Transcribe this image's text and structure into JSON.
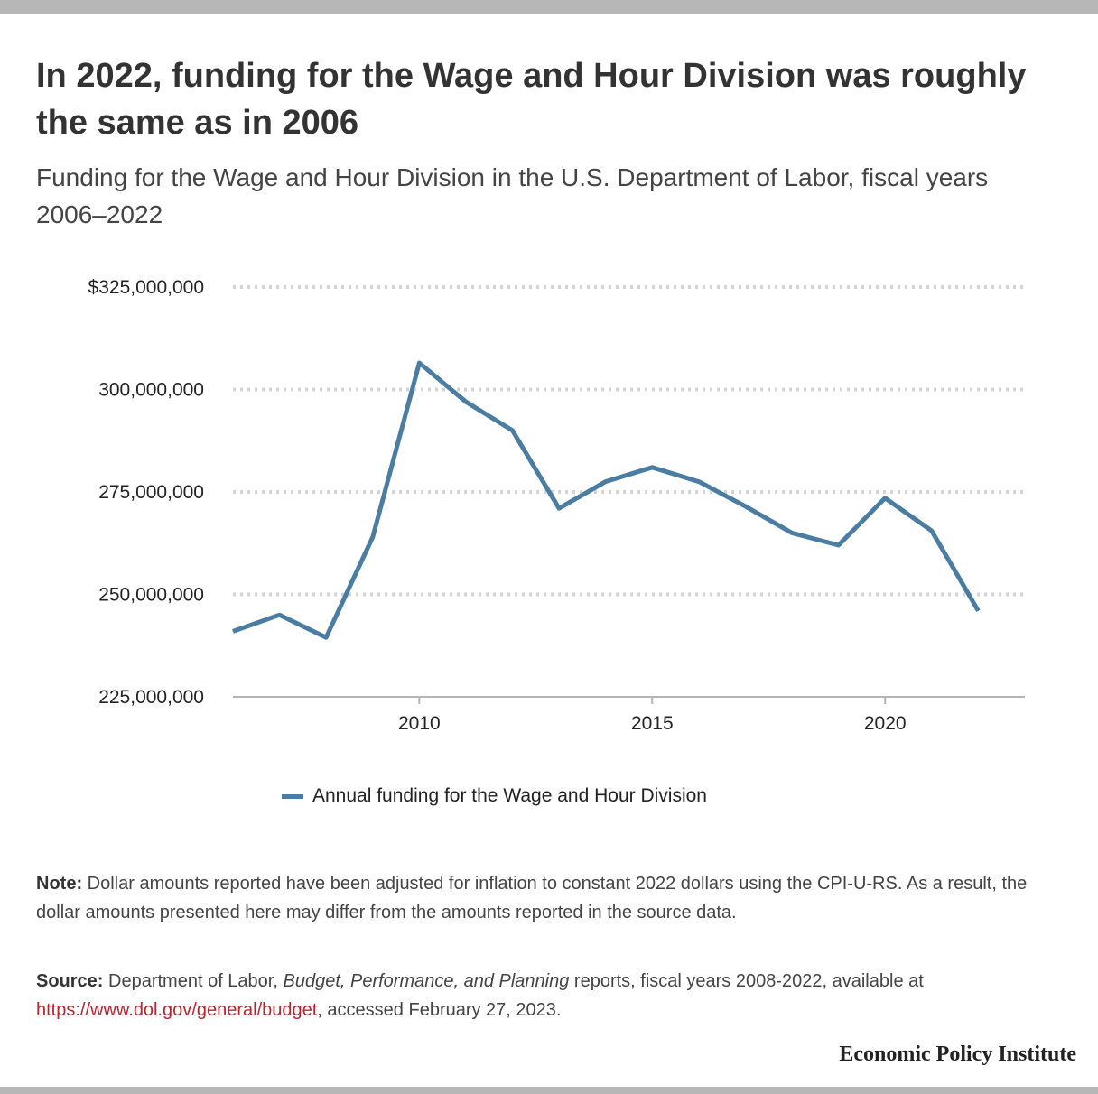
{
  "header": {
    "title": "In 2022, funding for the Wage and Hour Division was roughly the same as in 2006",
    "subtitle": "Funding for the Wage and Hour Division in the U.S. Department of Labor, fiscal years 2006–2022"
  },
  "chart_data": {
    "type": "line",
    "title": "In 2022, funding for the Wage and Hour Division was roughly the same as in 2006",
    "subtitle": "Funding for the Wage and Hour Division in the U.S. Department of Labor, fiscal years 2006–2022",
    "x": [
      2006,
      2007,
      2008,
      2009,
      2010,
      2011,
      2012,
      2013,
      2014,
      2015,
      2016,
      2017,
      2018,
      2019,
      2020,
      2021,
      2022
    ],
    "series": [
      {
        "name": "Annual funding for the Wage and Hour Division",
        "color": "#4a7da1",
        "values": [
          241000000,
          245000000,
          239500000,
          264000000,
          306500000,
          297000000,
          290000000,
          271000000,
          277500000,
          281000000,
          277500000,
          271500000,
          265000000,
          262000000,
          273500000,
          265500000,
          246000000
        ]
      }
    ],
    "xlim": [
      2006,
      2023
    ],
    "ylim": [
      225000000,
      325000000
    ],
    "y_ticks": [
      325000000,
      300000000,
      275000000,
      250000000,
      225000000
    ],
    "y_tick_labels": [
      "$325,000,000",
      "300,000,000",
      "275,000,000",
      "250,000,000",
      "225,000,000"
    ],
    "x_ticks": [
      2010,
      2015,
      2020
    ],
    "x_tick_labels": [
      "2010",
      "2015",
      "2020"
    ],
    "xlabel": "",
    "ylabel": "",
    "grid": "horizontal dotted",
    "legend_position": "bottom-center"
  },
  "legend": {
    "label": "Annual funding for the Wage and Hour Division"
  },
  "footer": {
    "note_label": "Note:",
    "note_text": " Dollar amounts reported have been adjusted for inflation to constant 2022 dollars using the CPI-U-RS. As a result, the dollar amounts presented here may differ from the amounts reported in the source data.",
    "source_label": "Source:",
    "source_text_1": " Department of Labor, ",
    "source_italic": "Budget, Performance, and Planning",
    "source_text_2": " reports, fiscal years 2008-2022, available at ",
    "source_link": "https://www.dol.gov/general/budget",
    "source_text_3": ", accessed February 27, 2023.",
    "publisher": "Economic Policy Institute"
  }
}
